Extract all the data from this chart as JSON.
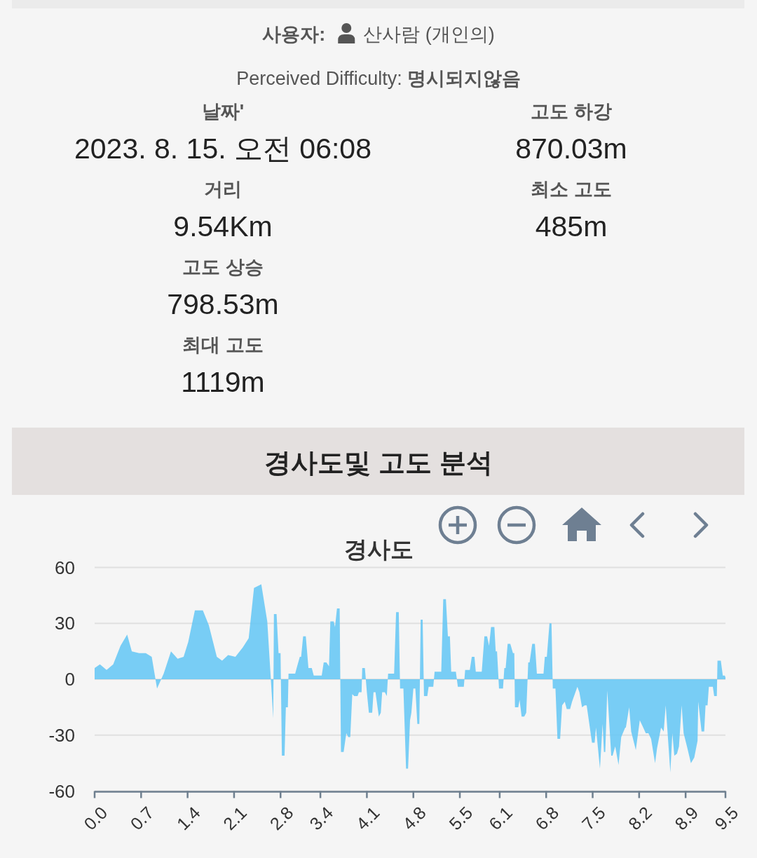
{
  "chart_data": [
    {
      "type": "other",
      "annotations": [
        "사용자:",
        "산사람 (개인의)",
        "Perceived Difficulty:",
        "명시되지않음",
        "날짜'",
        "2023. 8. 15. 오전 06:08",
        "거리",
        "9.54Km",
        "고도 상승",
        "798.53m",
        "최대 고도",
        "1119m",
        "고도 하강",
        "870.03m",
        "최소 고도",
        "485m"
      ]
    },
    {
      "type": "area",
      "title": "경사도및 고도 분석",
      "subtitle": "경사도",
      "color": "#62c6f5",
      "x": [
        0,
        0.08,
        0.18,
        0.28,
        0.39,
        0.49,
        0.56,
        0.67,
        0.77,
        0.86,
        0.94,
        1.04,
        1.15,
        1.25,
        1.34,
        1.41,
        1.51,
        1.63,
        1.72,
        1.84,
        1.92,
        2.01,
        2.12,
        2.23,
        2.32,
        2.4,
        2.51,
        2.6,
        2.69,
        2.7,
        2.74,
        2.77,
        2.8,
        2.82,
        2.86,
        2.88,
        2.91,
        2.92,
        3.02,
        3.05,
        3.09,
        3.11,
        3.14,
        3.18,
        3.22,
        3.27,
        3.3,
        3.42,
        3.45,
        3.49,
        3.53,
        3.55,
        3.6,
        3.62,
        3.65,
        3.69,
        3.71,
        3.75,
        3.79,
        3.82,
        3.85,
        3.88,
        3.91,
        3.96,
        3.98,
        4.02,
        4.03,
        4.07,
        4.1,
        4.13,
        4.18,
        4.2,
        4.23,
        4.28,
        4.31,
        4.33,
        4.37,
        4.4,
        4.42,
        4.51,
        4.54,
        4.58,
        4.6,
        4.65,
        4.69,
        4.72,
        4.75,
        4.77,
        4.8,
        4.83,
        4.86,
        4.89,
        4.91,
        4.94,
        4.96,
        5.01,
        5.03,
        5.1,
        5.12,
        5.22,
        5.25,
        5.29,
        5.32,
        5.35,
        5.37,
        5.44,
        5.47,
        5.56,
        5.58,
        5.65,
        5.68,
        5.72,
        5.74,
        5.83,
        5.87,
        5.91,
        5.94,
        5.97,
        6.02,
        6.04,
        6.06,
        6.09,
        6.15,
        6.17,
        6.19,
        6.22,
        6.26,
        6.3,
        6.32,
        6.33,
        6.38,
        6.4,
        6.43,
        6.47,
        6.5,
        6.53,
        6.55,
        6.59,
        6.63,
        6.64,
        6.66,
        6.76,
        6.78,
        6.81,
        6.85,
        6.88,
        6.9,
        6.94,
        6.97,
        7.01,
        7.04,
        7.08,
        7.11,
        7.16,
        7.19,
        7.27,
        7.3,
        7.34,
        7.38,
        7.41,
        7.49,
        7.53,
        7.55,
        7.61,
        7.65,
        7.67,
        7.69,
        7.72,
        7.78,
        7.8,
        7.84,
        7.89,
        7.93,
        7.99,
        8.0,
        8.05,
        8.08,
        8.15,
        8.21,
        8.25,
        8.3,
        8.34,
        8.38,
        8.44,
        8.47,
        8.53,
        8.57,
        8.6,
        8.67,
        8.7,
        8.73,
        8.77,
        8.8,
        8.84,
        8.87,
        8.92,
        8.98,
        9.03,
        9.08,
        9.09,
        9.14,
        9.18,
        9.2,
        9.23,
        9.25,
        9.31,
        9.33,
        9.37,
        9.38,
        9.43,
        9.46,
        9.49,
        9.5
      ],
      "values": [
        6,
        8,
        5,
        8,
        18,
        24,
        15,
        14,
        14,
        12,
        -5,
        3,
        15,
        11,
        12,
        20,
        37,
        37,
        29,
        12,
        10,
        13,
        12,
        17,
        22,
        49,
        51,
        31,
        -21,
        35,
        35,
        14,
        14,
        -41,
        -41,
        -15,
        -15,
        3,
        3,
        7,
        12,
        12,
        23,
        23,
        6,
        6,
        2,
        2,
        9,
        9,
        7,
        31,
        31,
        28,
        38,
        38,
        -39,
        -39,
        -29,
        -31,
        -31,
        -8,
        -9,
        -9,
        -7,
        -7,
        6,
        6,
        -7,
        -18,
        -18,
        -7,
        -7,
        -20,
        -18,
        -7,
        -7,
        -9,
        3,
        3,
        36,
        36,
        -5,
        -5,
        -48,
        -48,
        -22,
        -18,
        -5,
        -5,
        -24,
        -24,
        32,
        32,
        -9,
        -9,
        -4,
        -4,
        4,
        4,
        43,
        43,
        23,
        23,
        4,
        4,
        -4,
        -4,
        5,
        5,
        12,
        12,
        4,
        4,
        23,
        23,
        18,
        28,
        28,
        15,
        15,
        -5,
        -5,
        6,
        6,
        19,
        19,
        14,
        14,
        -15,
        -15,
        -11,
        -20,
        -20,
        -18,
        9,
        9,
        19,
        19,
        14,
        3,
        3,
        12,
        12,
        30,
        30,
        -5,
        -5,
        -32,
        -32,
        -14,
        -12,
        -16,
        -16,
        -12,
        -4,
        -7,
        -15,
        -14,
        -14,
        -34,
        -34,
        -26,
        -48,
        -24,
        -39,
        -39,
        -6,
        -41,
        -41,
        -36,
        -46,
        -31,
        -26,
        -26,
        -15,
        -28,
        -38,
        -22,
        -25,
        -29,
        -29,
        -32,
        -45,
        -37,
        -26,
        -28,
        -14,
        -50,
        -29,
        -41,
        -40,
        -36,
        -14,
        -29,
        -36,
        -45,
        -42,
        -33,
        -12,
        -28,
        -28,
        -14,
        -14,
        -4,
        -4,
        -9,
        -9,
        10,
        10,
        2,
        2,
        1
      ],
      "xlim": [
        0,
        9.5
      ],
      "xticks": [
        {
          "value": 0,
          "label": "0.0"
        },
        0.7,
        1.4,
        2.1,
        2.8,
        3.4,
        4.1,
        4.8,
        5.5,
        6.1,
        6.8,
        7.5,
        8.2,
        8.9,
        9.5
      ],
      "ylim": [
        -60,
        60
      ],
      "yticks": [
        -60,
        -30,
        0,
        30,
        60
      ],
      "grid": "y"
    }
  ]
}
